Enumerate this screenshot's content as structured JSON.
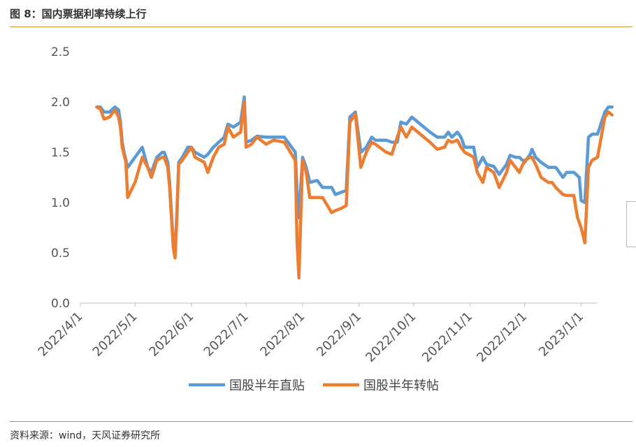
{
  "title": "图 8：国内票据利率持续上行",
  "source": "资料来源：wind，天风证券研究所",
  "chart_data": {
    "type": "line",
    "ylim": [
      0,
      2.5
    ],
    "yticks": [
      "0.0",
      "0.5",
      "1.0",
      "1.5",
      "2.0",
      "2.5"
    ],
    "xlim": [
      "2022-04-01",
      "2023-01-10"
    ],
    "xticks": [
      "2022/4/1",
      "2022/5/1",
      "2022/6/1",
      "2022/7/1",
      "2022/8/1",
      "2022/9/1",
      "2022/10/1",
      "2022/11/1",
      "2022/12/1",
      "2023/1/1"
    ],
    "legend_position": "bottom",
    "grid": false,
    "series": [
      {
        "name": "国股半年直贴",
        "color": "#5b9bd5",
        "points": [
          [
            "2022-04-10",
            1.95
          ],
          [
            "2022-04-12",
            1.95
          ],
          [
            "2022-04-14",
            1.9
          ],
          [
            "2022-04-17",
            1.9
          ],
          [
            "2022-04-20",
            1.95
          ],
          [
            "2022-04-22",
            1.92
          ],
          [
            "2022-04-23",
            1.8
          ],
          [
            "2022-04-24",
            1.6
          ],
          [
            "2022-04-25",
            1.5
          ],
          [
            "2022-04-27",
            1.35
          ],
          [
            "2022-05-01",
            1.45
          ],
          [
            "2022-05-05",
            1.55
          ],
          [
            "2022-05-08",
            1.35
          ],
          [
            "2022-05-10",
            1.3
          ],
          [
            "2022-05-13",
            1.45
          ],
          [
            "2022-05-16",
            1.5
          ],
          [
            "2022-05-17",
            1.5
          ],
          [
            "2022-05-19",
            1.4
          ],
          [
            "2022-05-20",
            1.2
          ],
          [
            "2022-05-22",
            0.6
          ],
          [
            "2022-05-23",
            0.5
          ],
          [
            "2022-05-24",
            0.9
          ],
          [
            "2022-05-25",
            1.4
          ],
          [
            "2022-05-27",
            1.45
          ],
          [
            "2022-05-30",
            1.55
          ],
          [
            "2022-06-01",
            1.55
          ],
          [
            "2022-06-03",
            1.5
          ],
          [
            "2022-06-08",
            1.45
          ],
          [
            "2022-06-10",
            1.48
          ],
          [
            "2022-06-13",
            1.55
          ],
          [
            "2022-06-16",
            1.6
          ],
          [
            "2022-06-19",
            1.65
          ],
          [
            "2022-06-21",
            1.78
          ],
          [
            "2022-06-24",
            1.75
          ],
          [
            "2022-06-28",
            1.8
          ],
          [
            "2022-06-30",
            2.05
          ],
          [
            "2022-07-01",
            1.6
          ],
          [
            "2022-07-04",
            1.62
          ],
          [
            "2022-07-07",
            1.66
          ],
          [
            "2022-07-12",
            1.65
          ],
          [
            "2022-07-18",
            1.65
          ],
          [
            "2022-07-22",
            1.65
          ],
          [
            "2022-07-26",
            1.55
          ],
          [
            "2022-07-28",
            1.5
          ],
          [
            "2022-07-29",
            1.1
          ],
          [
            "2022-07-30",
            0.85
          ],
          [
            "2022-08-01",
            1.45
          ],
          [
            "2022-08-03",
            1.35
          ],
          [
            "2022-08-05",
            1.2
          ],
          [
            "2022-08-09",
            1.22
          ],
          [
            "2022-08-12",
            1.15
          ],
          [
            "2022-08-17",
            1.15
          ],
          [
            "2022-08-19",
            1.08
          ],
          [
            "2022-08-22",
            1.1
          ],
          [
            "2022-08-25",
            1.12
          ],
          [
            "2022-08-27",
            1.85
          ],
          [
            "2022-08-30",
            1.9
          ],
          [
            "2022-09-02",
            1.5
          ],
          [
            "2022-09-05",
            1.55
          ],
          [
            "2022-09-08",
            1.65
          ],
          [
            "2022-09-10",
            1.62
          ],
          [
            "2022-09-16",
            1.62
          ],
          [
            "2022-09-19",
            1.6
          ],
          [
            "2022-09-22",
            1.6
          ],
          [
            "2022-09-24",
            1.8
          ],
          [
            "2022-09-27",
            1.78
          ],
          [
            "2022-09-30",
            1.85
          ],
          [
            "2022-10-10",
            1.7
          ],
          [
            "2022-10-14",
            1.65
          ],
          [
            "2022-10-18",
            1.65
          ],
          [
            "2022-10-20",
            1.7
          ],
          [
            "2022-10-22",
            1.65
          ],
          [
            "2022-10-25",
            1.7
          ],
          [
            "2022-10-27",
            1.65
          ],
          [
            "2022-10-29",
            1.55
          ],
          [
            "2022-11-03",
            1.55
          ],
          [
            "2022-11-05",
            1.35
          ],
          [
            "2022-11-08",
            1.45
          ],
          [
            "2022-11-10",
            1.38
          ],
          [
            "2022-11-14",
            1.36
          ],
          [
            "2022-11-17",
            1.28
          ],
          [
            "2022-11-21",
            1.38
          ],
          [
            "2022-11-23",
            1.47
          ],
          [
            "2022-11-26",
            1.45
          ],
          [
            "2022-11-28",
            1.45
          ],
          [
            "2022-12-01",
            1.4
          ],
          [
            "2022-12-04",
            1.48
          ],
          [
            "2022-12-05",
            1.53
          ],
          [
            "2022-12-07",
            1.45
          ],
          [
            "2022-12-10",
            1.4
          ],
          [
            "2022-12-14",
            1.35
          ],
          [
            "2022-12-18",
            1.35
          ],
          [
            "2022-12-22",
            1.25
          ],
          [
            "2022-12-24",
            1.3
          ],
          [
            "2022-12-28",
            1.3
          ],
          [
            "2022-12-31",
            1.25
          ],
          [
            "2023-01-01",
            1.02
          ],
          [
            "2023-01-03",
            1.0
          ],
          [
            "2023-01-05",
            1.65
          ],
          [
            "2023-01-07",
            1.68
          ],
          [
            "2023-01-10",
            1.68
          ],
          [
            "2023-01-14",
            1.9
          ],
          [
            "2023-01-16",
            1.95
          ],
          [
            "2023-01-18",
            1.95
          ]
        ]
      },
      {
        "name": "国股半年转帖",
        "color": "#ed7d31",
        "points": [
          [
            "2022-04-10",
            1.95
          ],
          [
            "2022-04-12",
            1.93
          ],
          [
            "2022-04-14",
            1.83
          ],
          [
            "2022-04-17",
            1.85
          ],
          [
            "2022-04-20",
            1.92
          ],
          [
            "2022-04-22",
            1.85
          ],
          [
            "2022-04-23",
            1.75
          ],
          [
            "2022-04-24",
            1.55
          ],
          [
            "2022-04-26",
            1.4
          ],
          [
            "2022-04-27",
            1.05
          ],
          [
            "2022-05-01",
            1.2
          ],
          [
            "2022-05-05",
            1.45
          ],
          [
            "2022-05-08",
            1.35
          ],
          [
            "2022-05-10",
            1.25
          ],
          [
            "2022-05-13",
            1.42
          ],
          [
            "2022-05-16",
            1.45
          ],
          [
            "2022-05-17",
            1.45
          ],
          [
            "2022-05-19",
            1.35
          ],
          [
            "2022-05-20",
            1.15
          ],
          [
            "2022-05-22",
            0.55
          ],
          [
            "2022-05-23",
            0.45
          ],
          [
            "2022-05-24",
            0.85
          ],
          [
            "2022-05-25",
            1.38
          ],
          [
            "2022-05-27",
            1.42
          ],
          [
            "2022-05-30",
            1.5
          ],
          [
            "2022-06-01",
            1.55
          ],
          [
            "2022-06-03",
            1.45
          ],
          [
            "2022-06-06",
            1.42
          ],
          [
            "2022-06-08",
            1.4
          ],
          [
            "2022-06-10",
            1.3
          ],
          [
            "2022-06-13",
            1.45
          ],
          [
            "2022-06-16",
            1.55
          ],
          [
            "2022-06-19",
            1.58
          ],
          [
            "2022-06-21",
            1.75
          ],
          [
            "2022-06-24",
            1.65
          ],
          [
            "2022-06-28",
            1.7
          ],
          [
            "2022-06-30",
            2.0
          ],
          [
            "2022-07-01",
            1.55
          ],
          [
            "2022-07-04",
            1.58
          ],
          [
            "2022-07-07",
            1.65
          ],
          [
            "2022-07-12",
            1.58
          ],
          [
            "2022-07-16",
            1.62
          ],
          [
            "2022-07-22",
            1.6
          ],
          [
            "2022-07-26",
            1.48
          ],
          [
            "2022-07-28",
            1.42
          ],
          [
            "2022-07-29",
            0.6
          ],
          [
            "2022-07-30",
            0.25
          ],
          [
            "2022-08-01",
            1.42
          ],
          [
            "2022-08-03",
            1.3
          ],
          [
            "2022-08-05",
            1.05
          ],
          [
            "2022-08-09",
            1.05
          ],
          [
            "2022-08-12",
            1.05
          ],
          [
            "2022-08-17",
            0.9
          ],
          [
            "2022-08-19",
            0.92
          ],
          [
            "2022-08-22",
            0.94
          ],
          [
            "2022-08-25",
            0.97
          ],
          [
            "2022-08-27",
            1.8
          ],
          [
            "2022-08-30",
            1.88
          ],
          [
            "2022-09-02",
            1.35
          ],
          [
            "2022-09-05",
            1.5
          ],
          [
            "2022-09-08",
            1.6
          ],
          [
            "2022-09-10",
            1.58
          ],
          [
            "2022-09-16",
            1.5
          ],
          [
            "2022-09-19",
            1.48
          ],
          [
            "2022-09-22",
            1.65
          ],
          [
            "2022-09-24",
            1.75
          ],
          [
            "2022-09-27",
            1.65
          ],
          [
            "2022-09-30",
            1.75
          ],
          [
            "2022-10-10",
            1.6
          ],
          [
            "2022-10-14",
            1.53
          ],
          [
            "2022-10-18",
            1.55
          ],
          [
            "2022-10-20",
            1.62
          ],
          [
            "2022-10-22",
            1.6
          ],
          [
            "2022-10-25",
            1.62
          ],
          [
            "2022-10-27",
            1.55
          ],
          [
            "2022-10-29",
            1.5
          ],
          [
            "2022-11-03",
            1.45
          ],
          [
            "2022-11-05",
            1.3
          ],
          [
            "2022-11-08",
            1.2
          ],
          [
            "2022-11-10",
            1.35
          ],
          [
            "2022-11-14",
            1.3
          ],
          [
            "2022-11-17",
            1.15
          ],
          [
            "2022-11-21",
            1.3
          ],
          [
            "2022-11-23",
            1.42
          ],
          [
            "2022-11-26",
            1.35
          ],
          [
            "2022-11-28",
            1.3
          ],
          [
            "2022-12-01",
            1.42
          ],
          [
            "2022-12-04",
            1.45
          ],
          [
            "2022-12-05",
            1.45
          ],
          [
            "2022-12-07",
            1.38
          ],
          [
            "2022-12-10",
            1.25
          ],
          [
            "2022-12-14",
            1.2
          ],
          [
            "2022-12-16",
            1.2
          ],
          [
            "2022-12-18",
            1.15
          ],
          [
            "2022-12-22",
            1.08
          ],
          [
            "2022-12-24",
            1.07
          ],
          [
            "2022-12-28",
            1.07
          ],
          [
            "2022-12-30",
            0.85
          ],
          [
            "2023-01-01",
            0.75
          ],
          [
            "2023-01-03",
            0.6
          ],
          [
            "2023-01-05",
            1.35
          ],
          [
            "2023-01-07",
            1.42
          ],
          [
            "2023-01-10",
            1.45
          ],
          [
            "2023-01-14",
            1.85
          ],
          [
            "2023-01-16",
            1.9
          ],
          [
            "2023-01-18",
            1.87
          ]
        ]
      }
    ]
  }
}
